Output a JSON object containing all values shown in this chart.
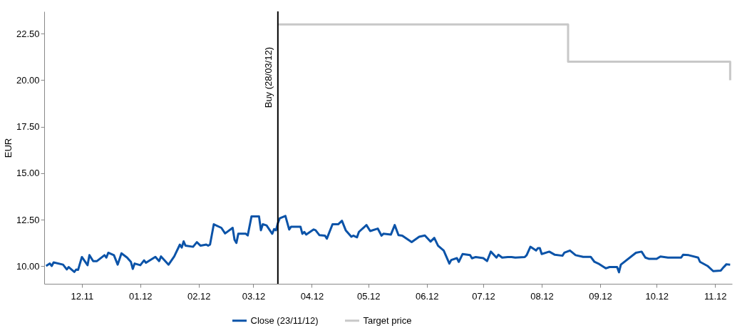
{
  "chart_data": {
    "type": "line",
    "ylabel": "EUR",
    "xlim": [
      "2011-11-25",
      "2012-11-24"
    ],
    "ylim": [
      9.05,
      23.7
    ],
    "xticks": [
      {
        "value": "2011-12-15",
        "label": "12.11"
      },
      {
        "value": "2012-01-15",
        "label": "01.12"
      },
      {
        "value": "2012-02-15",
        "label": "02.12"
      },
      {
        "value": "2012-03-15",
        "label": "03.12"
      },
      {
        "value": "2012-04-15",
        "label": "04.12"
      },
      {
        "value": "2012-05-15",
        "label": "05.12"
      },
      {
        "value": "2012-06-15",
        "label": "06.12"
      },
      {
        "value": "2012-07-15",
        "label": "07.12"
      },
      {
        "value": "2012-08-15",
        "label": "08.12"
      },
      {
        "value": "2012-09-15",
        "label": "09.12"
      },
      {
        "value": "2012-10-15",
        "label": "10.12"
      },
      {
        "value": "2012-11-15",
        "label": "11.12"
      }
    ],
    "yticks": [
      {
        "value": 10,
        "label": "10.00"
      },
      {
        "value": 12.5,
        "label": "12.50"
      },
      {
        "value": 15,
        "label": "15.00"
      },
      {
        "value": 17.5,
        "label": "17.50"
      },
      {
        "value": 20,
        "label": "20.00"
      },
      {
        "value": 22.5,
        "label": "22.50"
      }
    ],
    "grid": false,
    "legend": "bottom",
    "marker": "none",
    "line_style": "solid",
    "ref_lines": [
      {
        "axis": "x",
        "value": "2012-03-28",
        "label": "Buy (28/03/12)",
        "color": "#000000"
      }
    ],
    "series": [
      {
        "name": "Close (23/11/12)",
        "color": "#0b53a8",
        "type": "line",
        "x": [
          "2011-11-26",
          "2011-11-28",
          "2011-11-29",
          "2011-11-30",
          "2011-12-05",
          "2011-12-07",
          "2011-12-08",
          "2011-12-11",
          "2011-12-12",
          "2011-12-13",
          "2011-12-15",
          "2011-12-18",
          "2011-12-19",
          "2011-12-21",
          "2011-12-23",
          "2011-12-27",
          "2011-12-28",
          "2011-12-29",
          "2012-01-01",
          "2012-01-03",
          "2012-01-05",
          "2012-01-08",
          "2012-01-10",
          "2012-01-11",
          "2012-01-12",
          "2012-01-15",
          "2012-01-17",
          "2012-01-18",
          "2012-01-23",
          "2012-01-25",
          "2012-01-26",
          "2012-01-30",
          "2012-02-02",
          "2012-02-05",
          "2012-02-06",
          "2012-02-07",
          "2012-02-08",
          "2012-02-12",
          "2012-02-14",
          "2012-02-16",
          "2012-02-19",
          "2012-02-20",
          "2012-02-21",
          "2012-02-23",
          "2012-02-27",
          "2012-02-29",
          "2012-03-04",
          "2012-03-05",
          "2012-03-06",
          "2012-03-07",
          "2012-03-11",
          "2012-03-12",
          "2012-03-14",
          "2012-03-18",
          "2012-03-19",
          "2012-03-20",
          "2012-03-22",
          "2012-03-25",
          "2012-03-26",
          "2012-03-27",
          "2012-03-28",
          "2012-03-29",
          "2012-04-01",
          "2012-04-03",
          "2012-04-04",
          "2012-04-09",
          "2012-04-10",
          "2012-04-11",
          "2012-04-12",
          "2012-04-16",
          "2012-04-17",
          "2012-04-19",
          "2012-04-22",
          "2012-04-23",
          "2012-04-26",
          "2012-04-29",
          "2012-05-01",
          "2012-05-03",
          "2012-05-06",
          "2012-05-07",
          "2012-05-09",
          "2012-05-10",
          "2012-05-14",
          "2012-05-16",
          "2012-05-20",
          "2012-05-22",
          "2012-05-23",
          "2012-05-27",
          "2012-05-29",
          "2012-05-31",
          "2012-06-02",
          "2012-06-07",
          "2012-06-11",
          "2012-06-14",
          "2012-06-17",
          "2012-06-19",
          "2012-06-21",
          "2012-06-24",
          "2012-06-27",
          "2012-06-28",
          "2012-07-01",
          "2012-07-02",
          "2012-07-04",
          "2012-07-08",
          "2012-07-09",
          "2012-07-11",
          "2012-07-15",
          "2012-07-17",
          "2012-07-19",
          "2012-07-22",
          "2012-07-23",
          "2012-07-25",
          "2012-07-28",
          "2012-07-30",
          "2012-08-01",
          "2012-08-06",
          "2012-08-07",
          "2012-08-09",
          "2012-08-12",
          "2012-08-13",
          "2012-08-14",
          "2012-08-15",
          "2012-08-19",
          "2012-08-22",
          "2012-08-26",
          "2012-08-27",
          "2012-08-30",
          "2012-09-02",
          "2012-09-06",
          "2012-09-10",
          "2012-09-12",
          "2012-09-14",
          "2012-09-18",
          "2012-09-20",
          "2012-09-24",
          "2012-09-25",
          "2012-09-26",
          "2012-10-04",
          "2012-10-07",
          "2012-10-09",
          "2012-10-11",
          "2012-10-15",
          "2012-10-17",
          "2012-10-21",
          "2012-10-28",
          "2012-10-29",
          "2012-11-01",
          "2012-11-06",
          "2012-11-07",
          "2012-11-11",
          "2012-11-14",
          "2012-11-18",
          "2012-11-19",
          "2012-11-21",
          "2012-11-23"
        ],
        "values": [
          10.01,
          10.14,
          10.01,
          10.2,
          10.08,
          9.82,
          9.95,
          9.69,
          9.82,
          9.8,
          10.49,
          10.05,
          10.59,
          10.27,
          10.27,
          10.59,
          10.46,
          10.72,
          10.59,
          10.08,
          10.69,
          10.46,
          10.23,
          9.85,
          10.14,
          10.05,
          10.31,
          10.18,
          10.5,
          10.27,
          10.52,
          10.08,
          10.52,
          11.16,
          11.0,
          11.33,
          11.1,
          11.04,
          11.29,
          11.1,
          11.16,
          11.1,
          11.16,
          12.25,
          12.06,
          11.76,
          12.06,
          11.42,
          11.25,
          11.74,
          11.74,
          11.65,
          12.67,
          12.67,
          11.93,
          12.25,
          12.19,
          11.74,
          11.99,
          11.93,
          12.31,
          12.57,
          12.7,
          11.97,
          12.12,
          12.12,
          11.74,
          11.84,
          11.7,
          11.97,
          11.93,
          11.67,
          11.64,
          11.48,
          12.25,
          12.25,
          12.44,
          11.93,
          11.58,
          11.64,
          11.55,
          11.84,
          12.21,
          11.89,
          12.02,
          11.64,
          11.74,
          11.7,
          12.21,
          11.67,
          11.64,
          11.29,
          11.58,
          11.65,
          11.32,
          11.52,
          11.1,
          10.84,
          10.14,
          10.33,
          10.43,
          10.23,
          10.65,
          10.59,
          10.42,
          10.49,
          10.43,
          10.27,
          10.78,
          10.46,
          10.61,
          10.46,
          10.49,
          10.49,
          10.46,
          10.49,
          10.59,
          11.04,
          10.84,
          10.97,
          10.97,
          10.65,
          10.78,
          10.61,
          10.56,
          10.72,
          10.84,
          10.59,
          10.5,
          10.5,
          10.23,
          10.14,
          9.88,
          9.95,
          9.95,
          9.67,
          10.08,
          10.72,
          10.78,
          10.46,
          10.39,
          10.39,
          10.52,
          10.46,
          10.46,
          10.61,
          10.59,
          10.46,
          10.23,
          10.01,
          9.73,
          9.76,
          9.88,
          10.1,
          10.08
        ]
      },
      {
        "name": "Target price",
        "color": "#c8c8c8",
        "type": "step",
        "x": [
          "2012-03-28",
          "2012-08-29",
          "2012-11-23"
        ],
        "values": [
          23.0,
          21.0,
          20.0
        ]
      }
    ]
  }
}
